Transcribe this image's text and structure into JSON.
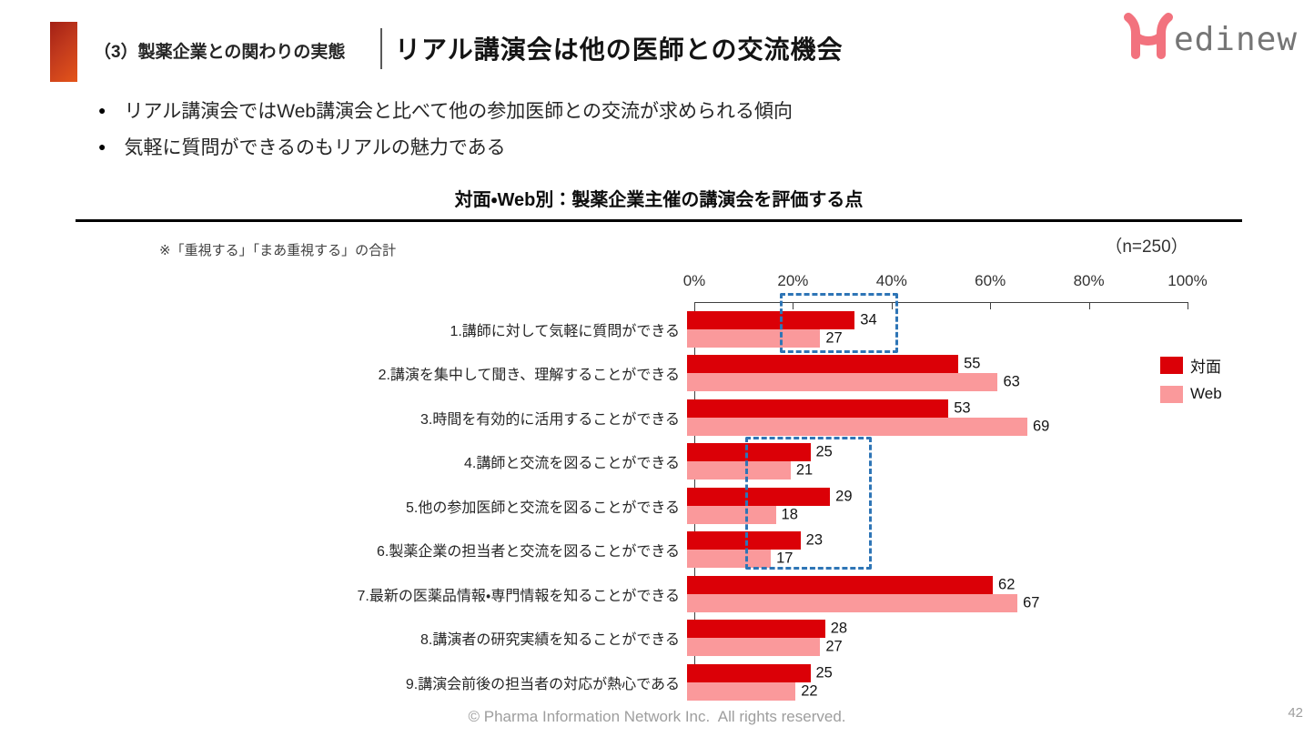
{
  "header": {
    "section_label": "（3）製薬企業との関わりの実態",
    "title": "リアル講演会は他の医師との交流機会",
    "logo_text": "edinew"
  },
  "bullets": [
    "リアル講演会ではWeb講演会と比べて他の参加医師との交流が求められる傾向",
    "気軽に質問ができるのもリアルの魅力である"
  ],
  "note": "※「重視する」「まあ重視する」の合計",
  "sample_size": "（n=250）",
  "colors": {
    "taimen_red": "#DB0007",
    "web_pink": "#FA999B",
    "highlight_box_blue": "#2E75B6",
    "accent_gradient_top": "#A32015",
    "accent_gradient_bottom": "#E4551A",
    "logo_pink": "#F2727E",
    "logo_gray": "#757575"
  },
  "chart_data": {
    "type": "bar",
    "orientation": "horizontal",
    "title": "対面・Web別：製薬企業主催の講演会を評価する点",
    "categories": [
      "1.講師に対して気軽に質問ができる",
      "2.講演を集中して聞き、理解することができる",
      "3.時間を有効的に活用することができる",
      "4.講師と交流を図ることができる",
      "5.他の参加医師と交流を図ることができる",
      "6.製薬企業の担当者と交流を図ることができる",
      "7.最新の医薬品情報・専門情報を知ることができる",
      "8.講演者の研究実績を知ることができる",
      "9.講演会前後の担当者の対応が熱心である"
    ],
    "series": [
      {
        "name": "対面",
        "color": "#DB0007",
        "values": [
          34,
          55,
          53,
          25,
          29,
          23,
          62,
          28,
          25
        ]
      },
      {
        "name": "Web",
        "color": "#FA999B",
        "values": [
          27,
          63,
          69,
          21,
          18,
          17,
          67,
          27,
          22
        ]
      }
    ],
    "x_ticks": [
      "0%",
      "20%",
      "40%",
      "60%",
      "80%",
      "100%"
    ],
    "xlim": [
      0,
      100
    ],
    "unit": "%",
    "legend_position": "right",
    "grid": false,
    "annotations": [
      {
        "type": "dashed-highlight-box",
        "around_items": [
          1
        ]
      },
      {
        "type": "dashed-highlight-box",
        "around_items": [
          4,
          5,
          6
        ]
      }
    ]
  },
  "footer": {
    "copyright": "© Pharma Information Network Inc.  All rights reserved.",
    "page_number": "42"
  }
}
